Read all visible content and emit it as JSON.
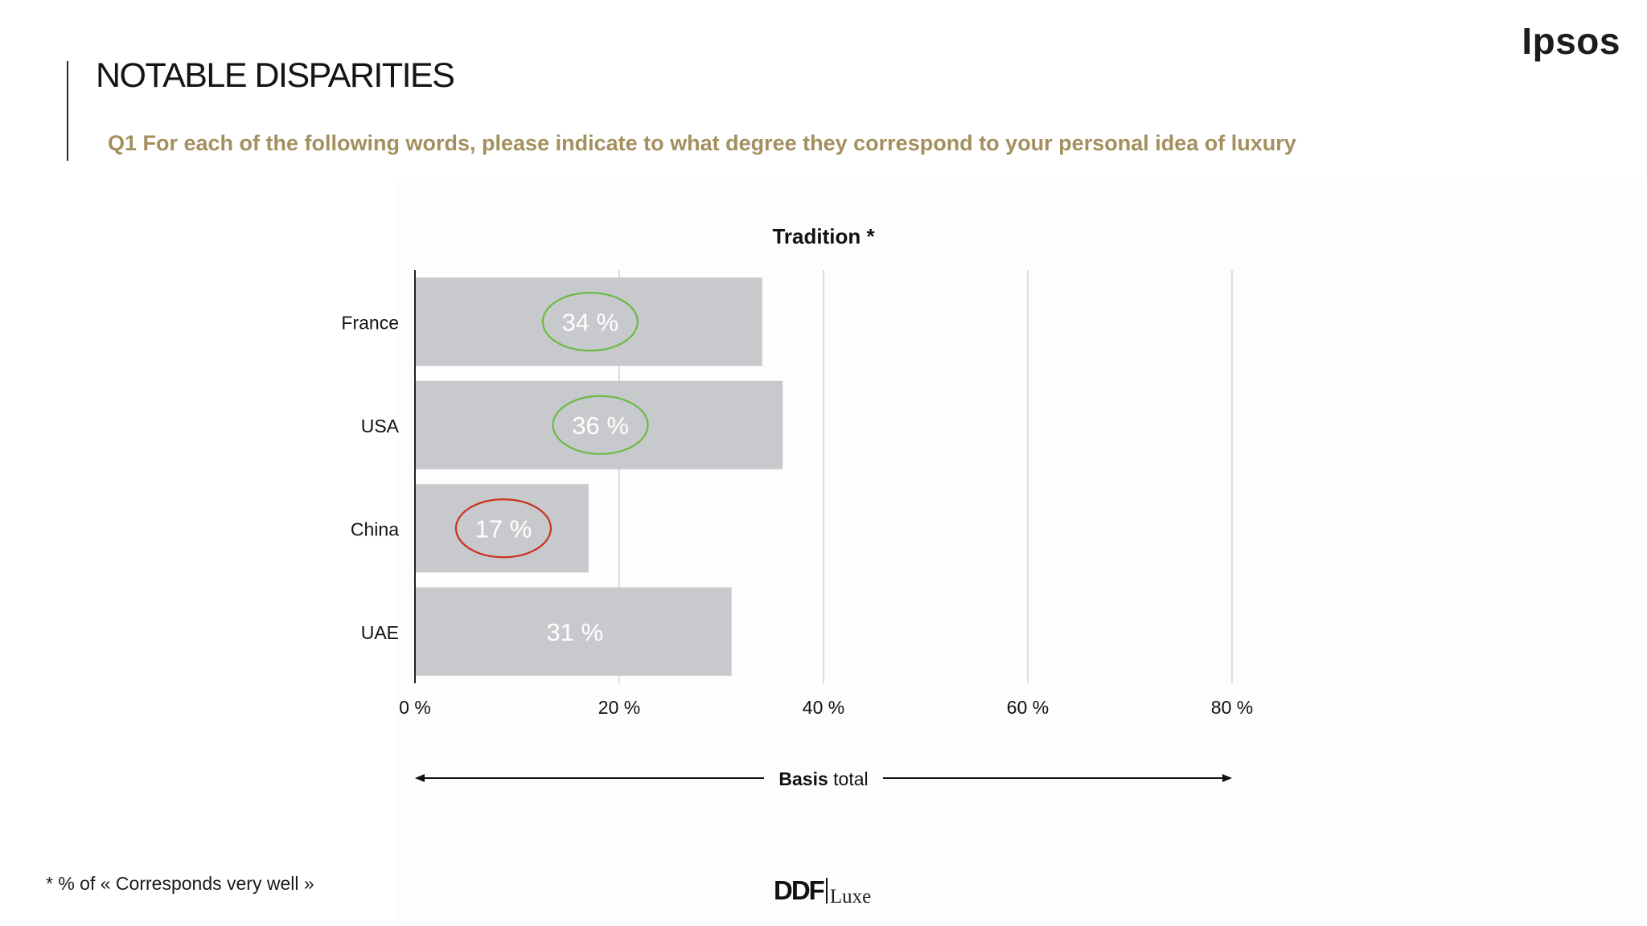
{
  "header": {
    "title": "NOTABLE DISPARITIES",
    "question": "Q1 For each of the following words, please indicate to what degree they correspond to your personal idea of luxury",
    "brand": "Ipsos"
  },
  "chart_data": {
    "type": "bar",
    "orientation": "horizontal",
    "title": "Tradition *",
    "categories": [
      "France",
      "USA",
      "China",
      "UAE"
    ],
    "values": [
      34,
      36,
      17,
      31
    ],
    "value_labels": [
      "34 %",
      "36 %",
      "17 %",
      "31 %"
    ],
    "highlights": [
      "good",
      "good",
      "bad",
      "none"
    ],
    "xlim": [
      0,
      80
    ],
    "xticks": [
      0,
      20,
      40,
      60,
      80
    ],
    "xtick_labels": [
      "0 %",
      "20 %",
      "40 %",
      "60 %",
      "80 %"
    ],
    "grid": true,
    "basis_bold": "Basis",
    "basis_rest": " total",
    "colors": {
      "bar": "#c8c9cc",
      "label": "#ffffff",
      "good": "#6cba45",
      "bad": "#c8321f",
      "grid": "#dcdcdc",
      "axis": "#222222"
    }
  },
  "footer": {
    "footnote": "* % of « Corresponds very well »",
    "logo_mark": "DDF",
    "logo_word": "Luxe"
  }
}
